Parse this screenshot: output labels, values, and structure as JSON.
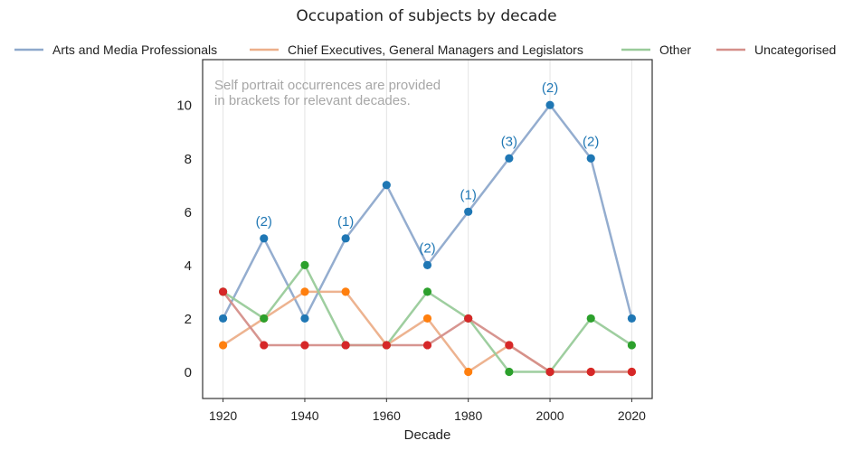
{
  "chart_data": {
    "type": "line",
    "title": "Occupation of subjects by decade",
    "xlabel": "Decade",
    "ylabel": "",
    "x": [
      1920,
      1930,
      1940,
      1950,
      1960,
      1970,
      1980,
      1990,
      2000,
      2010,
      2020
    ],
    "xticks": [
      "1920",
      "1940",
      "1960",
      "1980",
      "2000",
      "2020"
    ],
    "yticks": [
      "0",
      "2",
      "4",
      "6",
      "8",
      "10"
    ],
    "xlim": [
      1915,
      2025
    ],
    "ylim": [
      -1,
      11.7
    ],
    "grid": "vertical",
    "legend_position": "top",
    "annotation": "Self portrait occurrences are provided\nin brackets for relevant decades.",
    "series": [
      {
        "name": "Arts and Media Professionals",
        "line_color": "#8ea9cc",
        "marker_color": "#1f77b4",
        "values": [
          2,
          5,
          2,
          5,
          7,
          4,
          6,
          8,
          10,
          8,
          2
        ],
        "point_labels": [
          "",
          "(2)",
          "",
          "(1)",
          "",
          "(2)",
          "(1)",
          "(3)",
          "(2)",
          "(2)",
          ""
        ]
      },
      {
        "name": "Chief Executives, General Managers and Legislators",
        "line_color": "#ecaf8a",
        "marker_color": "#ff7f0e",
        "values": [
          1,
          2,
          3,
          3,
          1,
          2,
          0,
          1,
          0,
          0,
          0
        ]
      },
      {
        "name": "Other",
        "line_color": "#99cb9a",
        "marker_color": "#2ca02c",
        "values": [
          3,
          2,
          4,
          1,
          1,
          3,
          2,
          0,
          0,
          2,
          1
        ]
      },
      {
        "name": "Uncategorised",
        "line_color": "#d58f8a",
        "marker_color": "#d62728",
        "values": [
          3,
          1,
          1,
          1,
          1,
          1,
          2,
          1,
          0,
          0,
          0
        ]
      }
    ]
  }
}
